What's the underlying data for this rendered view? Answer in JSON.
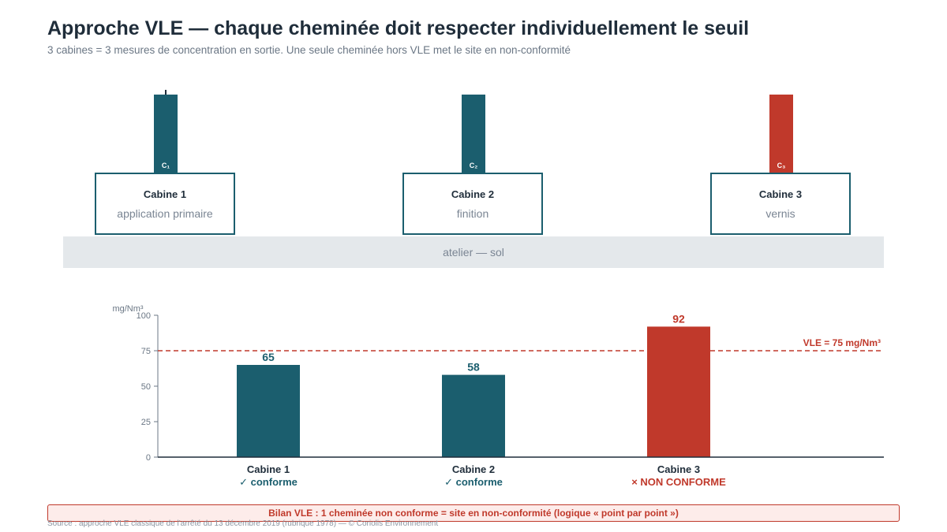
{
  "title": "Approche VLE — chaque cheminée doit respecter individuellement le seuil",
  "subtitle": "3 cabines = 3 mesures de concentration en sortie. Une seule cheminée hors VLE met le site en non-conformité",
  "floor_label": "atelier — sol",
  "cabins": [
    {
      "name": "Cabine 1",
      "role": "application primaire",
      "stack_label": "C₁",
      "color": "#1b5e6e"
    },
    {
      "name": "Cabine 2",
      "role": "finition",
      "stack_label": "C₂",
      "color": "#1b5e6e"
    },
    {
      "name": "Cabine 3",
      "role": "vernis",
      "stack_label": "C₃",
      "color": "#c0392b"
    }
  ],
  "chart_data": {
    "type": "bar",
    "ylabel": "mg/Nm³",
    "ylim": [
      0,
      100
    ],
    "yticks": [
      0,
      25,
      50,
      75,
      100
    ],
    "categories": [
      "Cabine 1",
      "Cabine 2",
      "Cabine 3"
    ],
    "values": [
      65,
      58,
      92
    ],
    "data_labels": [
      "65",
      "58",
      "92"
    ],
    "statuses": [
      "✓ conforme",
      "✓ conforme",
      "× NON CONFORME"
    ],
    "bar_colors": [
      "#1b5e6e",
      "#1b5e6e",
      "#c0392b"
    ],
    "threshold": {
      "value": 75,
      "label": "VLE = 75 mg/Nm³",
      "color": "#c0392b"
    }
  },
  "banner": "Bilan VLE : 1 cheminée non conforme = site en non-conformité (logique « point par point »)",
  "source": "Source : approche VLE classique de l'arrêté du 13 décembre 2019 (rubrique 1978) — © Coriolis Environnement"
}
